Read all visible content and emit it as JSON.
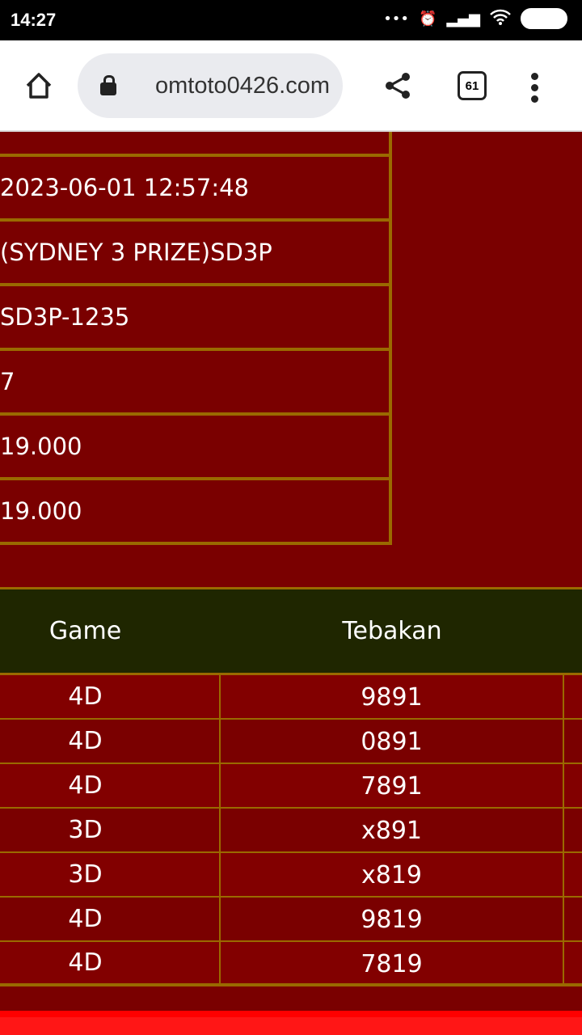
{
  "status_bar": {
    "time": "14:27",
    "battery": "45",
    "icons": [
      "more-dots-icon",
      "alarm-icon",
      "signal-icon",
      "wifi-icon",
      "battery-icon"
    ]
  },
  "browser": {
    "url": "omtoto0426.com",
    "tab_count": "61",
    "icons": [
      "home-icon",
      "lock-icon",
      "share-icon",
      "tabs-icon",
      "menu-icon"
    ]
  },
  "info_rows": [
    "2023-06-01 12:57:48",
    "(SYDNEY 3 PRIZE)SD3P",
    "SD3P-1235",
    "7",
    "19.000",
    "19.000"
  ],
  "bets_table": {
    "headers": {
      "game": "Game",
      "guess": "Tebakan"
    },
    "rows": [
      {
        "game": "4D",
        "guess": "9891"
      },
      {
        "game": "4D",
        "guess": "0891"
      },
      {
        "game": "4D",
        "guess": "7891"
      },
      {
        "game": "3D",
        "guess": "x891"
      },
      {
        "game": "3D",
        "guess": "x819"
      },
      {
        "game": "4D",
        "guess": "9819"
      },
      {
        "game": "4D",
        "guess": "7819"
      }
    ]
  },
  "colors": {
    "page_bg": "#7a0000",
    "border": "#9a6a00",
    "header_bg": "#1f2600",
    "footer_band": "#ff1616"
  }
}
